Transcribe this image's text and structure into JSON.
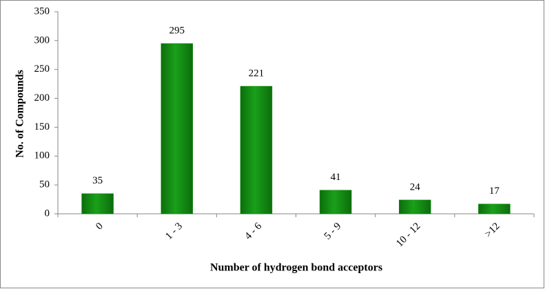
{
  "chart_data": {
    "type": "bar",
    "categories": [
      "0",
      "1 - 3",
      "4 - 6",
      "5 - 9",
      "10 - 12",
      ">12"
    ],
    "values": [
      35,
      295,
      221,
      41,
      24,
      17
    ],
    "color": "#109010",
    "x_label": "Number of hydrogen bond acceptors",
    "y_label": "No. of Compounds",
    "ylim": [
      0,
      350
    ],
    "yticks": [
      0,
      50,
      100,
      150,
      200,
      250,
      300,
      350
    ],
    "grid": false
  }
}
